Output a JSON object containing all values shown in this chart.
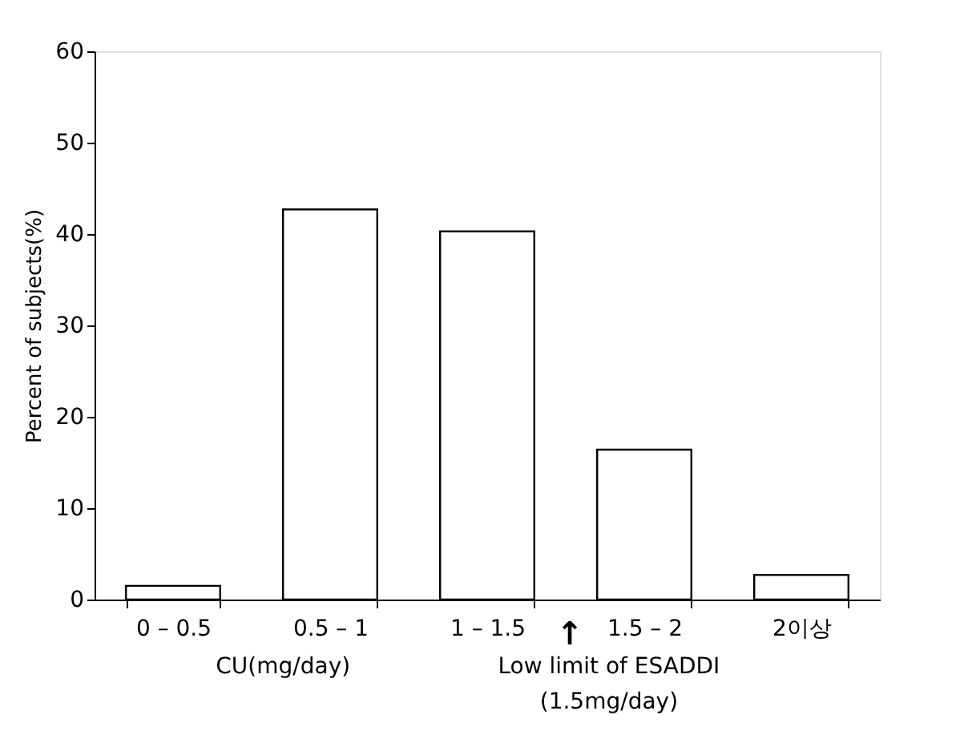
{
  "chart_data": {
    "type": "bar",
    "categories": [
      "0 – 0.5",
      "0.5 – 1",
      "1 – 1.5",
      "1.5 – 2",
      "2이상"
    ],
    "values": [
      1.5,
      42.7,
      40.3,
      16.4,
      2.7
    ],
    "color": "#ffffff",
    "xlabel": "CU(mg/day)",
    "ylabel": "Percent of subjects(%)",
    "ylim": [
      0,
      60
    ],
    "yticks": [
      0,
      10,
      20,
      30,
      40,
      50,
      60
    ],
    "annotations": [
      "↑",
      "Low limit of ESADDI",
      "(1.5mg/day)"
    ],
    "grid": false
  }
}
